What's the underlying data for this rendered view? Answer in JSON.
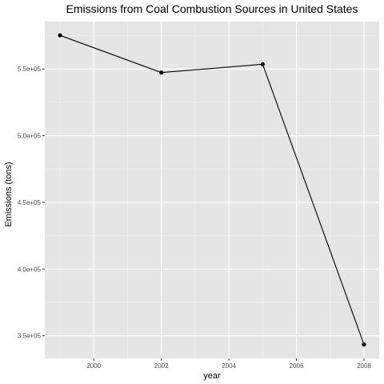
{
  "chart_data": {
    "type": "line",
    "title": "Emissions from Coal Combustion Sources in United States",
    "xlabel": "year",
    "ylabel": "Emissions (tons)",
    "x": [
      1999,
      2002,
      2005,
      2008
    ],
    "series": [
      {
        "values": [
          575200,
          547300,
          553500,
          343400
        ]
      }
    ],
    "xlim": [
      1998.55,
      2008.45
    ],
    "ylim": [
      333000,
      585500
    ],
    "x_ticks": [
      {
        "value": 2000,
        "label": "2000"
      },
      {
        "value": 2002,
        "label": "2002"
      },
      {
        "value": 2004,
        "label": "2004"
      },
      {
        "value": 2006,
        "label": "2006"
      },
      {
        "value": 2008,
        "label": "2008"
      }
    ],
    "y_ticks": [
      {
        "value": 350000,
        "label": "3.5e+05"
      },
      {
        "value": 400000,
        "label": "4.0e+05"
      },
      {
        "value": 450000,
        "label": "4.5e+05"
      },
      {
        "value": 500000,
        "label": "5.0e+05"
      },
      {
        "value": 550000,
        "label": "5.5e+05"
      }
    ],
    "grid": true,
    "legend": "none",
    "colors": {
      "panel": "#e5e5e5",
      "grid_major": "#ffffff",
      "line": "#000000",
      "point": "#000000"
    }
  }
}
